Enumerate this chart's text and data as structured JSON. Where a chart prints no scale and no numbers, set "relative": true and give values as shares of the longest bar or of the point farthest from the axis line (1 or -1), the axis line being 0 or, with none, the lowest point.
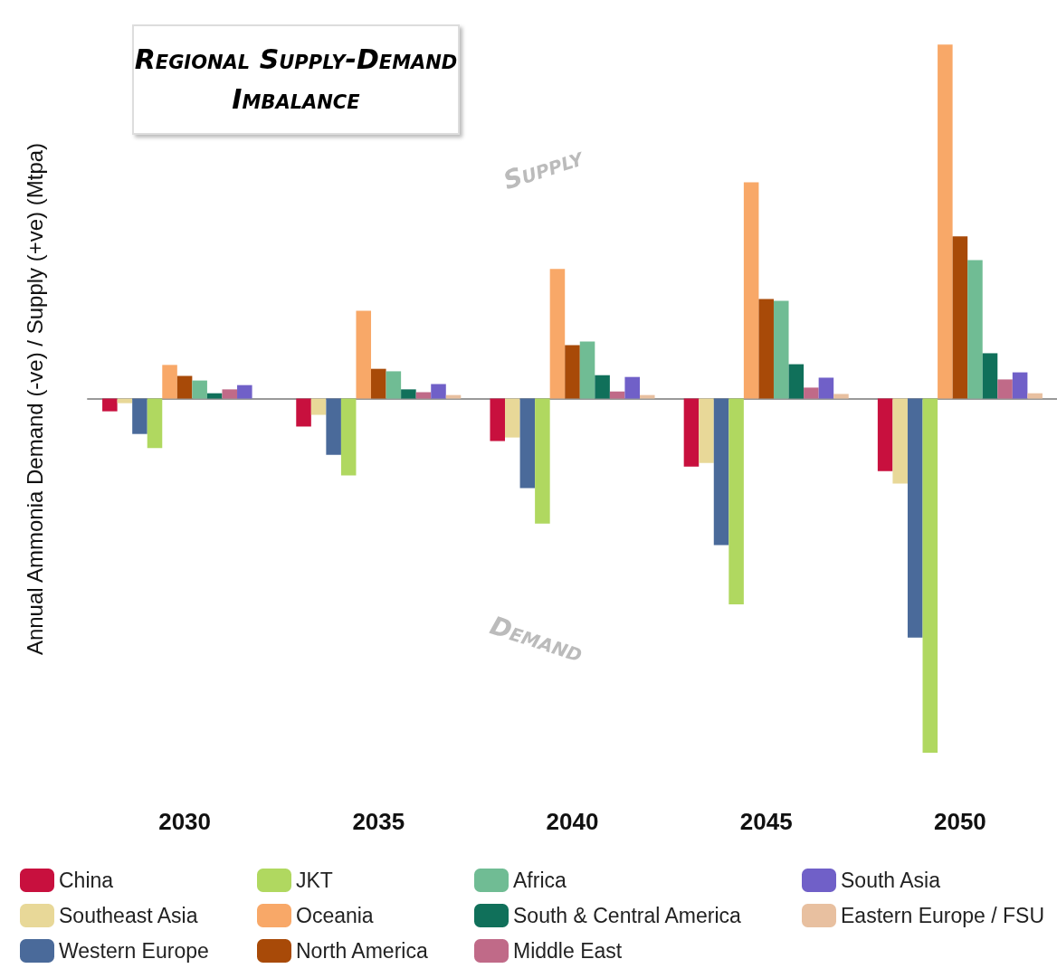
{
  "chart_data": {
    "type": "bar",
    "title": "Regional Supply-Demand Imbalance",
    "ylabel": "Annual Ammonia Demand (-ve) / Supply (+ve) (Mtpa)",
    "relative": true,
    "legend": "bottom",
    "annotations": [
      "Supply",
      "Demand"
    ],
    "categories": [
      "2030",
      "2035",
      "2040",
      "2045",
      "2050"
    ],
    "series": [
      {
        "name": "China",
        "color": "#c8103e",
        "values": [
          -0.036,
          -0.079,
          -0.12,
          -0.192,
          -0.205
        ]
      },
      {
        "name": "Southeast Asia",
        "color": "#e8d898",
        "values": [
          -0.013,
          -0.046,
          -0.11,
          -0.182,
          -0.24
        ]
      },
      {
        "name": "Western Europe",
        "color": "#4a6a9a",
        "values": [
          -0.1,
          -0.159,
          -0.253,
          -0.414,
          -0.675
        ]
      },
      {
        "name": "JKT",
        "color": "#b0d860",
        "values": [
          -0.14,
          -0.217,
          -0.353,
          -0.581,
          -1
        ]
      },
      {
        "name": "Oceania",
        "color": "#f8a868",
        "values": [
          0.095,
          0.248,
          0.366,
          0.611,
          1
        ]
      },
      {
        "name": "North America",
        "color": "#a84a08",
        "values": [
          0.064,
          0.084,
          0.151,
          0.281,
          0.458
        ]
      },
      {
        "name": "Africa",
        "color": "#70bc94",
        "values": [
          0.051,
          0.077,
          0.161,
          0.276,
          0.391
        ]
      },
      {
        "name": "South & Central America",
        "color": "#10705a",
        "values": [
          0.015,
          0.026,
          0.066,
          0.097,
          0.128
        ]
      },
      {
        "name": "Middle East",
        "color": "#c06a88",
        "values": [
          0.026,
          0.018,
          0.02,
          0.031,
          0.054
        ]
      },
      {
        "name": "South Asia",
        "color": "#7060c8",
        "values": [
          0.038,
          0.041,
          0.061,
          0.059,
          0.074
        ]
      },
      {
        "name": "Eastern Europe / FSU",
        "color": "#e8c0a0",
        "values": [
          0,
          0.01,
          0.01,
          0.013,
          0.015
        ]
      }
    ]
  }
}
